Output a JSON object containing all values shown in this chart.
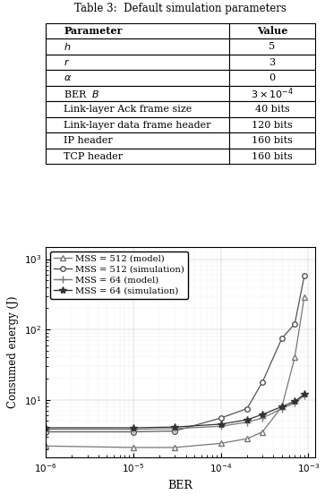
{
  "table_title": "Table 3:  Default simulation parameters",
  "table_col1_header": "Parameter",
  "table_col2_header": "Value",
  "table_rows": [
    [
      "$h$",
      "5"
    ],
    [
      "$r$",
      "3"
    ],
    [
      "$\\alpha$",
      "0"
    ],
    [
      "BER  $B$",
      "$3 \\times 10^{-4}$"
    ],
    [
      "Link-layer Ack frame size",
      "40 bits"
    ],
    [
      "Link-layer data frame header",
      "120 bits"
    ],
    [
      "IP header",
      "160 bits"
    ],
    [
      "TCP header",
      "160 bits"
    ]
  ],
  "plot_xlabel": "BER",
  "plot_ylabel": "Consumed energy (J)",
  "plot_xlim": [
    1e-06,
    0.0012
  ],
  "plot_ylim": [
    1.5,
    1500
  ],
  "series": [
    {
      "label": "MSS = 512 (model)",
      "marker": "^",
      "color": "#777777",
      "x": [
        1e-06,
        1e-05,
        3e-05,
        0.0001,
        0.0002,
        0.0003,
        0.0005,
        0.0007,
        0.0009
      ],
      "y": [
        2.2,
        2.1,
        2.1,
        2.4,
        2.8,
        3.5,
        8.0,
        40.0,
        290.0
      ]
    },
    {
      "label": "MSS = 512 (simulation)",
      "marker": "o",
      "color": "#555555",
      "x": [
        1e-06,
        1e-05,
        3e-05,
        0.0001,
        0.0002,
        0.0003,
        0.0005,
        0.0007,
        0.0009
      ],
      "y": [
        3.5,
        3.5,
        3.6,
        5.5,
        7.5,
        18.0,
        75.0,
        120.0,
        580.0
      ]
    },
    {
      "label": "MSS = 64 (model)",
      "marker": "+",
      "color": "#777777",
      "x": [
        1e-06,
        1e-05,
        3e-05,
        0.0001,
        0.0002,
        0.0003,
        0.0005,
        0.0007,
        0.0009
      ],
      "y": [
        3.8,
        3.8,
        3.9,
        4.2,
        4.8,
        5.5,
        7.5,
        9.0,
        11.5
      ]
    },
    {
      "label": "MSS = 64 (simulation)",
      "marker": "*",
      "color": "#333333",
      "x": [
        1e-06,
        1e-05,
        3e-05,
        0.0001,
        0.0002,
        0.0003,
        0.0005,
        0.0007,
        0.0009
      ],
      "y": [
        4.0,
        4.0,
        4.1,
        4.5,
        5.2,
        6.2,
        8.0,
        9.5,
        12.0
      ]
    }
  ]
}
